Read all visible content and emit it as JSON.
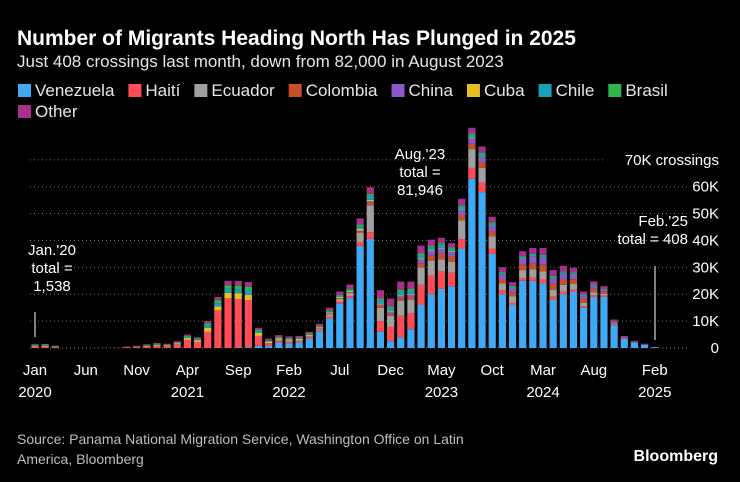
{
  "chart_data": {
    "type": "stacked_bar",
    "title": "Number of Migrants Heading North Has Plunged in 2025",
    "subtitle": "Just 408 crossings last month, down from 82,000 in August 2023",
    "source": "Source: Panama National Migration Service, Washington Office on Latin\nAmerica, Bloomberg",
    "brand": "Bloomberg",
    "categories": [
      "Jan\n2020",
      null,
      null,
      null,
      null,
      "Jun",
      null,
      null,
      null,
      null,
      "Nov",
      null,
      null,
      null,
      null,
      "Apr\n2021",
      null,
      null,
      null,
      null,
      "Sep",
      null,
      null,
      null,
      null,
      "Feb\n2022",
      null,
      null,
      null,
      null,
      "Jul",
      null,
      null,
      null,
      null,
      "Dec",
      null,
      null,
      null,
      null,
      "May\n2023",
      null,
      null,
      null,
      null,
      "Oct",
      null,
      null,
      null,
      null,
      "Mar\n2024",
      null,
      null,
      null,
      null,
      "Aug",
      null,
      null,
      null,
      null,
      null,
      "Feb\n2025"
    ],
    "series": [
      {
        "name": "Venezuela",
        "color": "#3fa9f5",
        "values": [
          0,
          0,
          0,
          0,
          0,
          0,
          0,
          0,
          0,
          0,
          0,
          0,
          0,
          0,
          0,
          0,
          0,
          0,
          0,
          0,
          200,
          300,
          800,
          800,
          2000,
          1800,
          2100,
          3500,
          6200,
          11000,
          16500,
          18500,
          38000,
          40600,
          6000,
          2500,
          4000,
          7000,
          16000,
          20000,
          22000,
          23000,
          37000,
          63000,
          58000,
          35000,
          20000,
          16000,
          25000,
          25000,
          24000,
          18000,
          20000,
          21000,
          15000,
          19000,
          19000,
          8500,
          3500,
          2000,
          1200,
          300
        ]
      },
      {
        "name": "Haití",
        "color": "#ff4d57",
        "values": [
          400,
          500,
          300,
          0,
          0,
          0,
          0,
          0,
          50,
          200,
          300,
          500,
          800,
          700,
          1400,
          3000,
          2200,
          6000,
          14000,
          18500,
          18000,
          17500,
          3500,
          800,
          700,
          600,
          500,
          500,
          600,
          700,
          800,
          800,
          1300,
          2500,
          4000,
          5500,
          8000,
          6000,
          7500,
          7000,
          6500,
          5000,
          3500,
          4000,
          3500,
          2000,
          1500,
          800,
          1000,
          1200,
          1500,
          1200,
          1000,
          800,
          600,
          600,
          500,
          300,
          100,
          100,
          50,
          20
        ]
      },
      {
        "name": "Ecuador",
        "color": "#a0a0a0",
        "values": [
          0,
          0,
          0,
          0,
          0,
          0,
          0,
          0,
          0,
          0,
          0,
          0,
          0,
          0,
          0,
          0,
          0,
          0,
          0,
          0,
          0,
          0,
          200,
          200,
          300,
          300,
          300,
          400,
          500,
          900,
          1000,
          1200,
          3500,
          10000,
          5000,
          4000,
          5500,
          5000,
          6500,
          5500,
          4500,
          4000,
          7000,
          7000,
          5500,
          4500,
          2500,
          2500,
          3000,
          3000,
          3000,
          2500,
          2500,
          2000,
          1200,
          1200,
          700,
          300,
          100,
          100,
          50,
          20
        ]
      },
      {
        "name": "Colombia",
        "color": "#c4512a",
        "values": [
          0,
          0,
          0,
          0,
          0,
          0,
          0,
          0,
          0,
          0,
          0,
          0,
          0,
          0,
          0,
          0,
          0,
          0,
          0,
          0,
          0,
          0,
          0,
          0,
          0,
          0,
          0,
          100,
          200,
          300,
          300,
          300,
          700,
          1000,
          800,
          800,
          1000,
          1000,
          1500,
          1800,
          2000,
          2000,
          2000,
          2000,
          2000,
          1800,
          1500,
          1400,
          2000,
          2300,
          2500,
          2200,
          2000,
          1800,
          1200,
          1200,
          900,
          400,
          200,
          100,
          50,
          18
        ]
      },
      {
        "name": "China",
        "color": "#8b58c9",
        "values": [
          0,
          0,
          0,
          0,
          0,
          0,
          0,
          0,
          0,
          0,
          0,
          0,
          0,
          0,
          0,
          0,
          0,
          0,
          0,
          0,
          0,
          0,
          0,
          0,
          0,
          0,
          0,
          0,
          0,
          0,
          0,
          0,
          200,
          500,
          400,
          500,
          800,
          900,
          1500,
          1800,
          2000,
          1800,
          1800,
          2000,
          2000,
          2000,
          1800,
          1500,
          2200,
          2500,
          2600,
          2000,
          2000,
          1600,
          1200,
          1200,
          800,
          400,
          200,
          100,
          50,
          20
        ]
      },
      {
        "name": "Cuba",
        "color": "#e5c020",
        "values": [
          300,
          300,
          200,
          0,
          0,
          0,
          0,
          0,
          0,
          100,
          200,
          300,
          300,
          300,
          400,
          700,
          600,
          1500,
          1500,
          2000,
          2200,
          2000,
          1200,
          600,
          600,
          500,
          500,
          400,
          300,
          400,
          400,
          400,
          600,
          500,
          300,
          300,
          300,
          300,
          300,
          300,
          300,
          300,
          200,
          300,
          200,
          200,
          100,
          100,
          100,
          100,
          100,
          100,
          100,
          100,
          100,
          100,
          100,
          0,
          0,
          0,
          0,
          0
        ]
      },
      {
        "name": "Chile",
        "color": "#1aa0b8",
        "values": [
          300,
          300,
          150,
          0,
          0,
          0,
          0,
          0,
          0,
          0,
          100,
          200,
          300,
          200,
          250,
          500,
          400,
          1000,
          1200,
          1500,
          1500,
          1600,
          600,
          300,
          300,
          300,
          300,
          300,
          300,
          400,
          500,
          500,
          1000,
          1500,
          1200,
          1200,
          1300,
          1200,
          1300,
          1100,
          1100,
          900,
          1000,
          1000,
          1000,
          800,
          600,
          500,
          600,
          700,
          700,
          600,
          600,
          500,
          400,
          300,
          200,
          100,
          0,
          0,
          0,
          0
        ]
      },
      {
        "name": "Brasil",
        "color": "#2fb54a",
        "values": [
          200,
          200,
          100,
          0,
          0,
          0,
          0,
          0,
          0,
          0,
          0,
          100,
          200,
          100,
          150,
          300,
          300,
          700,
          1100,
          1300,
          1300,
          1300,
          400,
          200,
          200,
          200,
          200,
          200,
          200,
          300,
          300,
          400,
          700,
          800,
          700,
          700,
          800,
          700,
          700,
          600,
          600,
          500,
          500,
          500,
          500,
          500,
          300,
          300,
          300,
          300,
          300,
          300,
          300,
          300,
          200,
          200,
          100,
          100,
          0,
          0,
          0,
          0
        ]
      },
      {
        "name": "Other",
        "color": "#a8308c",
        "values": [
          338,
          200,
          150,
          0,
          0,
          0,
          100,
          100,
          100,
          200,
          200,
          300,
          300,
          300,
          300,
          500,
          500,
          800,
          1200,
          1700,
          1800,
          1800,
          800,
          600,
          700,
          600,
          600,
          600,
          700,
          1000,
          1200,
          1500,
          2200,
          2400,
          3100,
          2900,
          3000,
          2600,
          2800,
          2200,
          2000,
          1500,
          2500,
          2146,
          2300,
          2000,
          1700,
          1400,
          1800,
          2100,
          2500,
          2100,
          2100,
          1800,
          1100,
          1000,
          700,
          500,
          400,
          300,
          200,
          30
        ]
      }
    ],
    "ylim": [
      0,
      82600
    ],
    "yticks": [
      0,
      {
        "value": 10000,
        "label": "10K"
      },
      {
        "value": 20000,
        "label": "20K"
      },
      {
        "value": 30000,
        "label": "30K"
      },
      {
        "value": 40000,
        "label": "40K"
      },
      {
        "value": 50000,
        "label": "50K"
      },
      {
        "value": 60000,
        "label": "60K"
      },
      {
        "value": 70000,
        "label": "70K crossings"
      }
    ],
    "grid": true,
    "annotations": [
      {
        "text": "Jan.'20\ntotal =\n1,538"
      },
      {
        "text": "Aug.'23\ntotal =\n81,946"
      },
      {
        "text": "Feb.'25\ntotal = 408"
      }
    ]
  }
}
